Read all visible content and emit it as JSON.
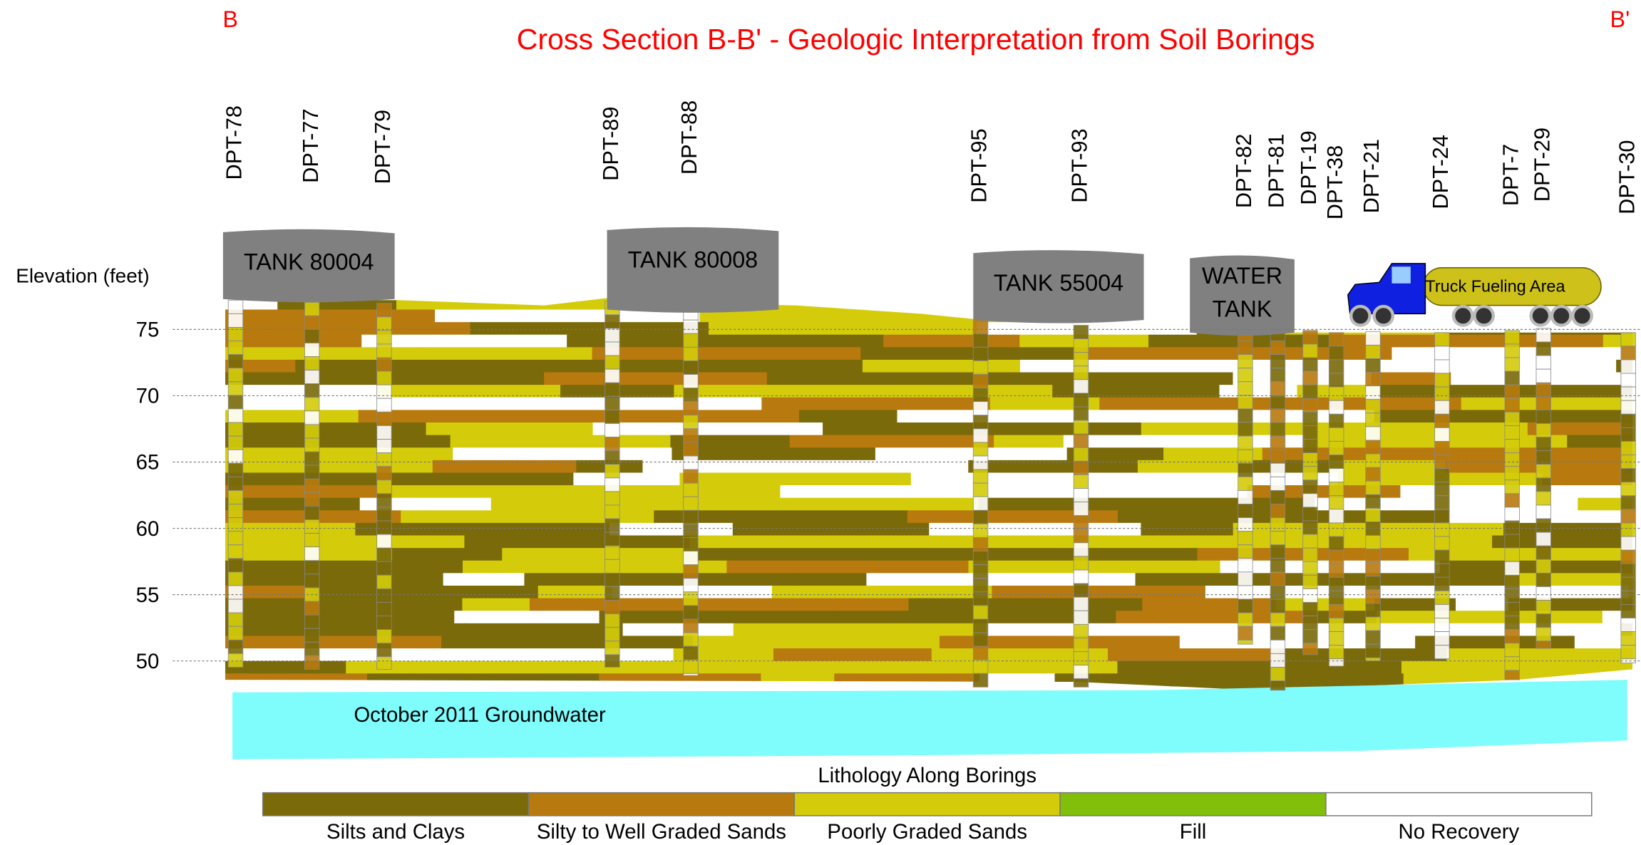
{
  "title": "Cross Section B-B' - Geologic Interpretation from Soil Borings",
  "section_start": "B",
  "section_end": "B'",
  "axis": {
    "label": "Elevation (feet)",
    "ticks": [
      50,
      55,
      60,
      65,
      70,
      75
    ]
  },
  "borings": [
    "DPT-78",
    "DPT-77",
    "DPT-79",
    "DPT-89",
    "DPT-88",
    "DPT-95",
    "DPT-93",
    "DPT-82",
    "DPT-81",
    "DPT-19",
    "DPT-38",
    "DPT-21",
    "DPT-24",
    "DPT-7",
    "DPT-29",
    "DPT-30"
  ],
  "structures": [
    {
      "lines": [
        "TANK 80004"
      ]
    },
    {
      "lines": [
        "TANK 80008"
      ]
    },
    {
      "lines": [
        "TANK 55004"
      ]
    },
    {
      "lines": [
        "WATER",
        "TANK"
      ]
    }
  ],
  "truck_label": "Truck Fueling Area",
  "groundwater_label": "October 2011 Groundwater",
  "legend": {
    "title": "Lithology Along Borings",
    "items": [
      {
        "label": "Silts and Clays",
        "color": "#7a6a0a"
      },
      {
        "label": "Silty to Well Graded Sands",
        "color": "#b87a0e"
      },
      {
        "label": "Poorly Graded Sands",
        "color": "#d4cc0a"
      },
      {
        "label": "Fill",
        "color": "#82bf0a"
      },
      {
        "label": "No Recovery",
        "color": "#ffffff"
      }
    ]
  }
}
